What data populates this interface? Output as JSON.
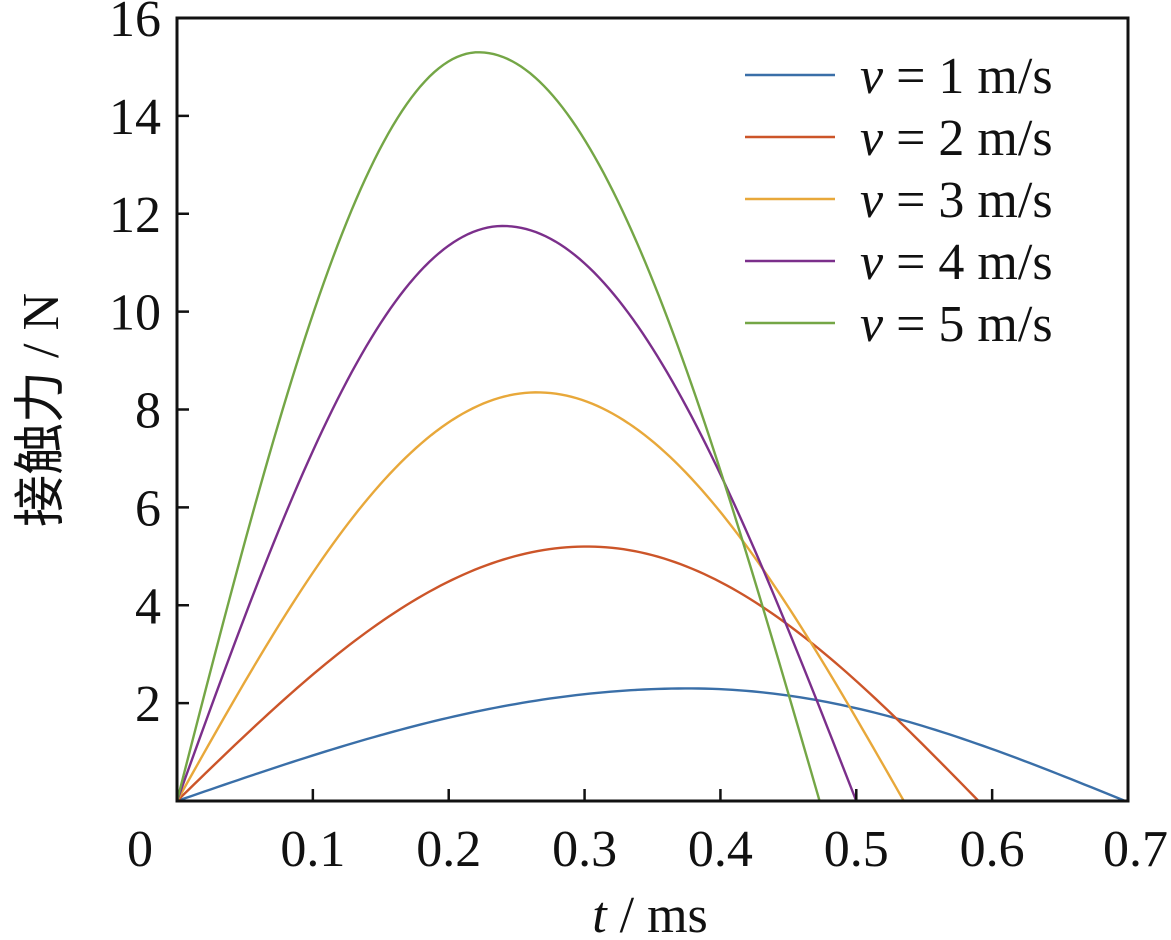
{
  "chart_data": {
    "type": "line",
    "title": "",
    "xlabel": {
      "var": "t",
      "rest": " / ms"
    },
    "ylabel": "接触力 / N",
    "xlim": [
      0,
      0.7
    ],
    "ylim": [
      0,
      16
    ],
    "xticks": [
      0,
      0.1,
      0.2,
      0.3,
      0.4,
      0.5,
      0.6,
      0.7
    ],
    "xtick_labels": [
      "0",
      "0.1",
      "0.2",
      "0.3",
      "0.4",
      "0.5",
      "0.6",
      "0.7"
    ],
    "yticks": [
      2,
      4,
      6,
      8,
      10,
      12,
      14,
      16
    ],
    "ytick_labels": [
      "2",
      "4",
      "6",
      "8",
      "10",
      "12",
      "14",
      "16"
    ],
    "grid": false,
    "legend_position": "top-right",
    "series": [
      {
        "name": "v = 1 m/s",
        "label_var": "v",
        "label_rest": " = 1 m/s",
        "color": "#3a6fa8",
        "peak_x": 0.377,
        "peak_y": 2.3,
        "end_x": 0.698
      },
      {
        "name": "v = 2 m/s",
        "label_var": "v",
        "label_rest": " = 2 m/s",
        "color": "#cc5529",
        "peak_x": 0.302,
        "peak_y": 5.2,
        "end_x": 0.59
      },
      {
        "name": "v = 3 m/s",
        "label_var": "v",
        "label_rest": " = 3 m/s",
        "color": "#e8a83a",
        "peak_x": 0.265,
        "peak_y": 8.35,
        "end_x": 0.535
      },
      {
        "name": "v = 4 m/s",
        "label_var": "v",
        "label_rest": " = 4 m/s",
        "color": "#7b2f8b",
        "peak_x": 0.24,
        "peak_y": 11.75,
        "end_x": 0.5
      },
      {
        "name": "v = 5 m/s",
        "label_var": "v",
        "label_rest": " = 5 m/s",
        "color": "#74a646",
        "peak_x": 0.222,
        "peak_y": 15.3,
        "end_x": 0.473
      }
    ]
  }
}
